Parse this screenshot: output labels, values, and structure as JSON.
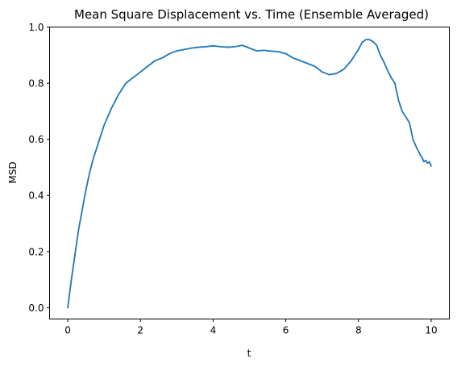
{
  "chart_data": {
    "type": "line",
    "title": "Mean Square Displacement vs. Time (Ensemble Averaged)",
    "xlabel": "t",
    "ylabel": "MSD",
    "xlim": [
      -0.5,
      10.5
    ],
    "ylim": [
      -0.04,
      1.0
    ],
    "xticks": [
      0,
      2,
      4,
      6,
      8,
      10
    ],
    "xtick_labels": [
      "0",
      "2",
      "4",
      "6",
      "8",
      "10"
    ],
    "yticks": [
      0.0,
      0.2,
      0.4,
      0.6,
      0.8,
      1.0
    ],
    "ytick_labels": [
      "0.0",
      "0.2",
      "0.4",
      "0.6",
      "0.8",
      "1.0"
    ],
    "grid": false,
    "line_color": "#1f77b4",
    "series": [
      {
        "x": [
          0.0,
          0.1,
          0.2,
          0.3,
          0.4,
          0.5,
          0.6,
          0.7,
          0.8,
          0.9,
          1.0,
          1.2,
          1.4,
          1.5,
          1.6,
          1.8,
          2.0,
          2.2,
          2.4,
          2.6,
          2.8,
          3.0,
          3.2,
          3.4,
          3.6,
          3.8,
          4.0,
          4.2,
          4.4,
          4.6,
          4.8,
          5.0,
          5.2,
          5.4,
          5.6,
          5.8,
          6.0,
          6.2,
          6.4,
          6.6,
          6.8,
          7.0,
          7.2,
          7.4,
          7.6,
          7.8,
          8.0,
          8.1,
          8.2,
          8.3,
          8.4,
          8.5,
          8.6,
          8.7,
          8.8,
          8.9,
          9.0,
          9.1,
          9.2,
          9.3,
          9.4,
          9.5,
          9.6,
          9.7,
          9.75,
          9.8,
          9.85,
          9.9,
          9.95,
          10.0
        ],
        "y": [
          0.0,
          0.1,
          0.19,
          0.28,
          0.35,
          0.42,
          0.48,
          0.53,
          0.57,
          0.61,
          0.65,
          0.71,
          0.76,
          0.78,
          0.8,
          0.82,
          0.84,
          0.86,
          0.88,
          0.89,
          0.905,
          0.915,
          0.92,
          0.925,
          0.928,
          0.93,
          0.933,
          0.93,
          0.928,
          0.93,
          0.935,
          0.925,
          0.915,
          0.917,
          0.914,
          0.912,
          0.905,
          0.89,
          0.88,
          0.87,
          0.86,
          0.84,
          0.83,
          0.835,
          0.85,
          0.88,
          0.92,
          0.945,
          0.955,
          0.955,
          0.948,
          0.935,
          0.9,
          0.875,
          0.845,
          0.82,
          0.8,
          0.74,
          0.7,
          0.68,
          0.66,
          0.6,
          0.57,
          0.545,
          0.535,
          0.52,
          0.525,
          0.515,
          0.52,
          0.505
        ]
      }
    ]
  }
}
